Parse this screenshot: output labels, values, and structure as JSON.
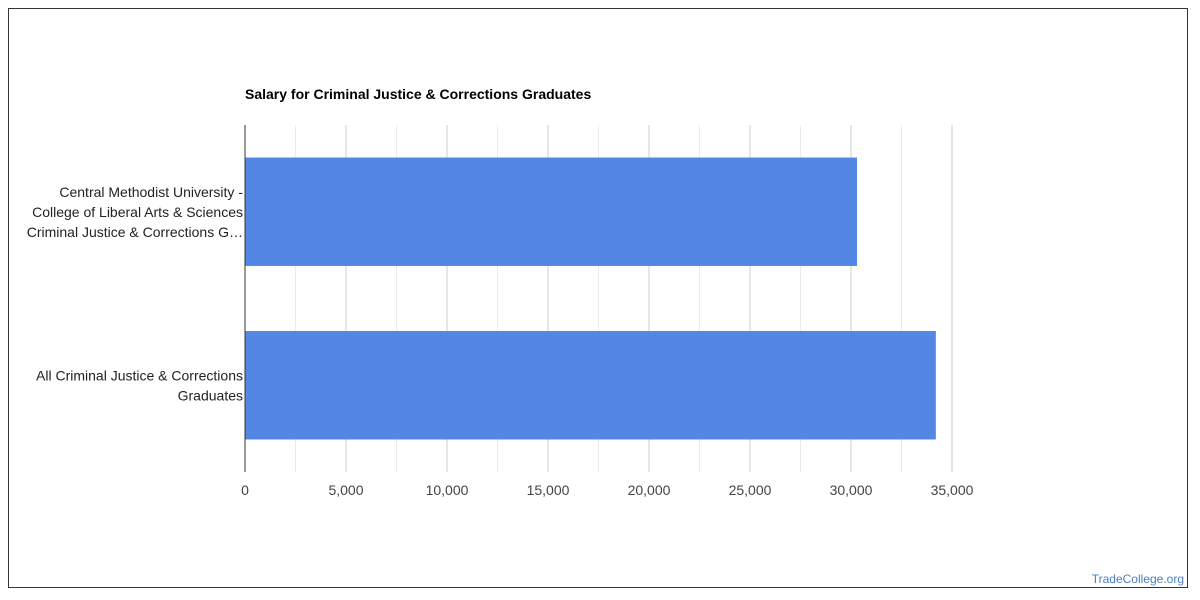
{
  "chart_data": {
    "type": "bar",
    "orientation": "horizontal",
    "title": "Salary for Criminal Justice & Corrections Graduates",
    "categories": [
      [
        "Central Methodist University -",
        "College of Liberal Arts & Sciences",
        "Criminal Justice & Corrections G…"
      ],
      [
        "All Criminal Justice & Corrections",
        "Graduates"
      ]
    ],
    "values": [
      30300,
      34200
    ],
    "xlim": [
      0,
      35000
    ],
    "xticks": [
      0,
      5000,
      10000,
      15000,
      20000,
      25000,
      30000,
      35000
    ],
    "xtick_labels": [
      "0",
      "5,000",
      "10,000",
      "15,000",
      "20,000",
      "25,000",
      "30,000",
      "35,000"
    ],
    "bar_color": "#5486e3",
    "grid": true
  },
  "footer": {
    "watermark": "TradeCollege.org"
  }
}
